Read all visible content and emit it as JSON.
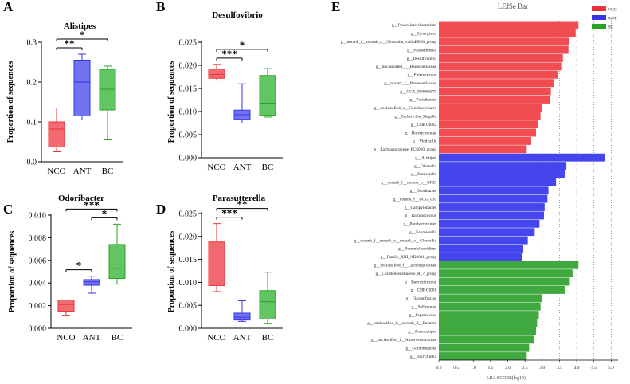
{
  "figure": {
    "description_labels": [
      "A",
      "B",
      "C",
      "D",
      "E"
    ]
  },
  "chart_data": [
    {
      "panel": "A",
      "type": "boxplot",
      "title": "Alistipes",
      "ylabel": "Proportion of sequences",
      "ylim": [
        0,
        0.3
      ],
      "yticks": [
        "0.0",
        "0.1",
        "0.2",
        "0.3"
      ],
      "yticks_values": [
        0,
        0.1,
        0.2,
        0.3
      ],
      "categories": [
        "NCO",
        "ANT",
        "BC"
      ],
      "colors": [
        "#e8313a",
        "#3535e6",
        "#27a327"
      ],
      "fills": [
        "#f26a6f",
        "#7373f2",
        "#63c463"
      ],
      "boxes": [
        {
          "min": 0.025,
          "q1": 0.037,
          "median": 0.082,
          "q3": 0.1,
          "max": 0.135
        },
        {
          "min": 0.105,
          "q1": 0.115,
          "median": 0.2,
          "q3": 0.255,
          "max": 0.27
        },
        {
          "min": 0.055,
          "q1": 0.13,
          "median": 0.182,
          "q3": 0.232,
          "max": 0.24
        }
      ],
      "significance": [
        {
          "from": 0,
          "to": 1,
          "label": "**"
        },
        {
          "from": 0,
          "to": 2,
          "label": "*"
        }
      ]
    },
    {
      "panel": "B",
      "type": "boxplot",
      "title": "Desulfovibrio",
      "ylabel": "Proportion of sequences",
      "ylim": [
        0,
        0.025
      ],
      "yticks": [
        "0.000",
        "0.005",
        "0.010",
        "0.015",
        "0.020",
        "0.025"
      ],
      "yticks_values": [
        0,
        0.005,
        0.01,
        0.015,
        0.02,
        0.025
      ],
      "categories": [
        "NCO",
        "ANT",
        "BC"
      ],
      "colors": [
        "#e8313a",
        "#3535e6",
        "#27a327"
      ],
      "fills": [
        "#f26a6f",
        "#7373f2",
        "#63c463"
      ],
      "boxes": [
        {
          "min": 0.0168,
          "q1": 0.0172,
          "median": 0.018,
          "q3": 0.0192,
          "max": 0.0202
        },
        {
          "min": 0.0075,
          "q1": 0.0083,
          "median": 0.0093,
          "q3": 0.0103,
          "max": 0.016
        },
        {
          "min": 0.0088,
          "q1": 0.0092,
          "median": 0.0118,
          "q3": 0.0178,
          "max": 0.0193
        }
      ],
      "significance": [
        {
          "from": 0,
          "to": 1,
          "label": "***"
        },
        {
          "from": 0,
          "to": 2,
          "label": "*"
        }
      ]
    },
    {
      "panel": "C",
      "type": "boxplot",
      "title": "Odoribacter",
      "ylabel": "Proportion of sequences",
      "ylim": [
        0,
        0.01
      ],
      "yticks": [
        "0.000",
        "0.002",
        "0.004",
        "0.006",
        "0.008",
        "0.010"
      ],
      "yticks_values": [
        0,
        0.002,
        0.004,
        0.006,
        0.008,
        0.01
      ],
      "categories": [
        "NCO",
        "ANT",
        "BC"
      ],
      "colors": [
        "#e8313a",
        "#3535e6",
        "#27a327"
      ],
      "fills": [
        "#f26a6f",
        "#7373f2",
        "#63c463"
      ],
      "boxes": [
        {
          "min": 0.0011,
          "q1": 0.0015,
          "median": 0.0021,
          "q3": 0.0025,
          "max": 0.0025
        },
        {
          "min": 0.0031,
          "q1": 0.0038,
          "median": 0.0041,
          "q3": 0.0043,
          "max": 0.0046
        },
        {
          "min": 0.0039,
          "q1": 0.0044,
          "median": 0.0053,
          "q3": 0.0074,
          "max": 0.0092
        }
      ],
      "significance": [
        {
          "from": 0,
          "to": 1,
          "label": "*"
        },
        {
          "from": 1,
          "to": 2,
          "label": "*"
        },
        {
          "from": 0,
          "to": 2,
          "label": "***"
        }
      ]
    },
    {
      "panel": "D",
      "type": "boxplot",
      "title": "Parasutterella",
      "ylabel": "Proportion of sequences",
      "ylim": [
        0,
        0.025
      ],
      "yticks": [
        "0.000",
        "0.005",
        "0.010",
        "0.015",
        "0.020",
        "0.025"
      ],
      "yticks_values": [
        0,
        0.005,
        0.01,
        0.015,
        0.02,
        0.025
      ],
      "categories": [
        "NCO",
        "ANT",
        "BC"
      ],
      "colors": [
        "#e8313a",
        "#3535e6",
        "#27a327"
      ],
      "fills": [
        "#f26a6f",
        "#7373f2",
        "#63c463"
      ],
      "boxes": [
        {
          "min": 0.008,
          "q1": 0.0093,
          "median": 0.0105,
          "q3": 0.0188,
          "max": 0.0228
        },
        {
          "min": 0.0015,
          "q1": 0.0018,
          "median": 0.0024,
          "q3": 0.0033,
          "max": 0.006
        },
        {
          "min": 0.001,
          "q1": 0.002,
          "median": 0.0058,
          "q3": 0.0082,
          "max": 0.0122
        }
      ],
      "significance": [
        {
          "from": 0,
          "to": 1,
          "label": "***"
        },
        {
          "from": 0,
          "to": 2,
          "label": "**"
        }
      ]
    },
    {
      "panel": "E",
      "type": "bar",
      "orientation": "horizontal",
      "title": "LEfSe Bar",
      "xlabel": "LDA SCORE(log10)",
      "xlim": [
        0,
        5.2
      ],
      "xticks": [
        "0.0",
        "0.5",
        "1.0",
        "1.5",
        "2.0",
        "2.5",
        "3.0",
        "3.5",
        "4.0",
        "4.5",
        "5.0"
      ],
      "xticks_values": [
        0,
        0.5,
        1,
        1.5,
        2,
        2.5,
        3,
        3.5,
        4,
        4.5,
        5
      ],
      "legend": [
        {
          "name": "NCO",
          "color": "#e8313a"
        },
        {
          "name": "ANT",
          "color": "#3535e6"
        },
        {
          "name": "BC",
          "color": "#27a327"
        }
      ],
      "group_colors": {
        "NCO": "#f04c51",
        "ANT": "#4545ee",
        "BC": "#3fa83f"
      },
      "bars": [
        {
          "label": "g__Phascolarctobacterium",
          "value": 4.05,
          "group": "NCO"
        },
        {
          "label": "g__Synergistes",
          "value": 3.97,
          "group": "NCO"
        },
        {
          "label": "g__norank_f__norank_o__Clostridia_vadinBB60_group",
          "value": 3.78,
          "group": "NCO"
        },
        {
          "label": "g__Parasutterella",
          "value": 3.76,
          "group": "NCO"
        },
        {
          "label": "g__Desulfovibrio",
          "value": 3.6,
          "group": "NCO"
        },
        {
          "label": "g__unclassified_f__Barnesiellaceae",
          "value": 3.55,
          "group": "NCO"
        },
        {
          "label": "g__Enterococcus",
          "value": 3.45,
          "group": "NCO"
        },
        {
          "label": "g__norank_f__Barnesiellaceae",
          "value": 3.35,
          "group": "NCO"
        },
        {
          "label": "g__GCA_900066575",
          "value": 3.25,
          "group": "NCO"
        },
        {
          "label": "g__Turicibacter",
          "value": 3.22,
          "group": "NCO"
        },
        {
          "label": "g__unclassified_o__Coriobacteriales",
          "value": 3.0,
          "group": "NCO"
        },
        {
          "label": "g__Escherichia_Shigella",
          "value": 2.95,
          "group": "NCO"
        },
        {
          "label": "g__CHKCI002",
          "value": 2.88,
          "group": "NCO"
        },
        {
          "label": "g__Butyricimonas",
          "value": 2.82,
          "group": "NCO"
        },
        {
          "label": "g__Victivallis",
          "value": 2.68,
          "group": "NCO"
        },
        {
          "label": "g__Lachnospiraceae_FCS020_group",
          "value": 2.55,
          "group": "NCO"
        },
        {
          "label": "g__Alistipes",
          "value": 4.82,
          "group": "ANT"
        },
        {
          "label": "g__Olsenella",
          "value": 3.7,
          "group": "ANT"
        },
        {
          "label": "g__Barnesiella",
          "value": 3.65,
          "group": "ANT"
        },
        {
          "label": "g__norank_f__norank_o__RF39",
          "value": 3.4,
          "group": "ANT"
        },
        {
          "label": "g__Odoribacter",
          "value": 3.18,
          "group": "ANT"
        },
        {
          "label": "g__norank_f__UCG_010",
          "value": 3.15,
          "group": "ANT"
        },
        {
          "label": "g__Campylobacter",
          "value": 3.07,
          "group": "ANT"
        },
        {
          "label": "g__Ruminococcus",
          "value": 3.05,
          "group": "ANT"
        },
        {
          "label": "g__Parabacteroides",
          "value": 2.92,
          "group": "ANT"
        },
        {
          "label": "g__Fournierella",
          "value": 2.78,
          "group": "ANT"
        },
        {
          "label": "g__norank_f__norank_o__norank_c__Clostridia",
          "value": 2.58,
          "group": "ANT"
        },
        {
          "label": "g__Ruminiclostridium",
          "value": 2.45,
          "group": "ANT"
        },
        {
          "label": "g__Family_XIII_AD3011_group",
          "value": 2.42,
          "group": "ANT"
        },
        {
          "label": "g__unclassified_f__Lachnospiraceae",
          "value": 4.05,
          "group": "BC"
        },
        {
          "label": "g__Christensenellaceae_R_7_group",
          "value": 3.88,
          "group": "BC"
        },
        {
          "label": "g__Butyricicoccus",
          "value": 3.8,
          "group": "BC"
        },
        {
          "label": "g__CHKCI001",
          "value": 3.65,
          "group": "BC"
        },
        {
          "label": "g__Flavonifractor",
          "value": 2.98,
          "group": "BC"
        },
        {
          "label": "g__Sellimonas",
          "value": 2.95,
          "group": "BC"
        },
        {
          "label": "g__Peptococcus",
          "value": 2.9,
          "group": "BC"
        },
        {
          "label": "g__unclassified_k__norank_d__Bacteria",
          "value": 2.85,
          "group": "BC"
        },
        {
          "label": "g__Anaerostipes",
          "value": 2.82,
          "group": "BC"
        },
        {
          "label": "g__unclassified_f__Anaerovoracaceae",
          "value": 2.75,
          "group": "BC"
        },
        {
          "label": "g__Gordonibacter",
          "value": 2.62,
          "group": "BC"
        },
        {
          "label": "g__Harryflintia",
          "value": 2.55,
          "group": "BC"
        }
      ]
    }
  ]
}
